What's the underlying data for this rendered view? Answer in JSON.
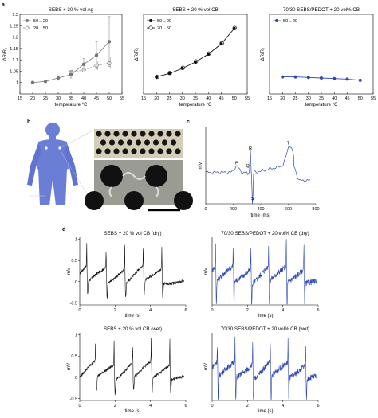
{
  "panels": {
    "a": "a",
    "b": "b",
    "c": "c",
    "d": "d"
  },
  "colors": {
    "silver": "#777777",
    "cb": "#111111",
    "pedot": "#2f47b3",
    "figure_body": "#6a7ed6"
  },
  "chart_data": [
    {
      "id": "a1",
      "type": "line",
      "title": "SEBS + 30 % vol Ag",
      "xlabel": "temperature °C",
      "ylabel": "ΔR/R₀",
      "xlim": [
        15,
        55
      ],
      "ylim": [
        0.95,
        1.3
      ],
      "xticks": [
        15,
        20,
        25,
        30,
        35,
        40,
        45,
        50,
        55
      ],
      "yticks": [
        1,
        1.05,
        1.1,
        1.15,
        1.2,
        1.25,
        1.3
      ],
      "legend_position": "top-left",
      "series": [
        {
          "name": "50→20",
          "x": [
            20,
            25,
            30,
            35,
            40,
            45,
            50
          ],
          "values": [
            1.0,
            1.005,
            1.02,
            1.035,
            1.08,
            1.12,
            1.18
          ],
          "error": [
            0,
            0.004,
            0.01,
            0.015,
            0.025,
            0.06,
            0.11
          ]
        },
        {
          "name": "20→50",
          "x": [
            35,
            40,
            45,
            50
          ],
          "values": [
            1.045,
            1.055,
            1.075,
            1.085
          ],
          "error": [
            0.012,
            0.015,
            0.02,
            0.025
          ]
        }
      ]
    },
    {
      "id": "a2",
      "type": "line",
      "title": "SEBS + 20 % vol CB",
      "xlabel": "temperature °C",
      "ylabel": "ΔR/R₀",
      "xlim": [
        15,
        55
      ],
      "ylim": [
        0.97,
        1.11
      ],
      "xticks": [
        15,
        20,
        25,
        30,
        35,
        40,
        45,
        50,
        55
      ],
      "yticks": [],
      "legend_position": "top-left",
      "series": [
        {
          "name": "50→20",
          "x": [
            20,
            25,
            30,
            35,
            40,
            45,
            50
          ],
          "values": [
            1.0,
            1.006,
            1.015,
            1.026,
            1.04,
            1.058,
            1.085
          ]
        },
        {
          "name": "20→50",
          "x": [
            20,
            25,
            30,
            35,
            40,
            45,
            50
          ],
          "values": [
            1.0,
            1.007,
            1.016,
            1.027,
            1.041,
            1.059,
            1.086
          ]
        }
      ]
    },
    {
      "id": "a3",
      "type": "line",
      "title": "70/30 SEBS/PEDOT + 20 vol% CB",
      "xlabel": "temperature °C",
      "ylabel": "ΔR/R₀",
      "xlim": [
        15,
        55
      ],
      "ylim": [
        0.97,
        1.11
      ],
      "xticks": [
        15,
        20,
        25,
        30,
        35,
        40,
        45,
        50,
        55
      ],
      "yticks": [],
      "legend_position": "top-left",
      "series": [
        {
          "name": "50→20",
          "x": [
            20,
            25,
            30,
            35,
            40,
            45,
            50
          ],
          "values": [
            1.0,
            1.0,
            0.999,
            0.998,
            0.997,
            0.996,
            0.994
          ]
        }
      ]
    },
    {
      "id": "c",
      "type": "line",
      "title": "",
      "xlabel": "time (ms)",
      "ylabel": "mV",
      "xlim": [
        0,
        800
      ],
      "ylim": [
        -0.7,
        1.0
      ],
      "xticks": [
        0,
        200,
        400,
        600,
        800
      ],
      "yticks": [],
      "annotations": [
        {
          "label": "P",
          "x": 225,
          "y": 0.14
        },
        {
          "label": "Q",
          "x": 305,
          "y": 0.08
        },
        {
          "label": "R",
          "x": 325,
          "y": 0.47
        },
        {
          "label": "S",
          "x": 340,
          "y": -0.65
        },
        {
          "label": "T",
          "x": 600,
          "y": 0.58
        }
      ]
    },
    {
      "id": "d1",
      "type": "line",
      "title": "SEBS + 20 % vol CB  (dry)",
      "xlabel": "time (s)",
      "ylabel": "mV",
      "xlim": [
        0,
        6
      ],
      "ylim": [
        -0.55,
        1.05
      ],
      "xticks": [
        0,
        2,
        4,
        6
      ],
      "yticks": [
        -0.5,
        0,
        0.5,
        1
      ],
      "beat_times_s": [
        0.4,
        1.5,
        2.55,
        3.6,
        4.65
      ],
      "color": "#111111"
    },
    {
      "id": "d2",
      "type": "line",
      "title": "70/30 SEBS/PEDOT + 20 vol% CB (dry)",
      "xlabel": "time (s)",
      "ylabel": "mV",
      "xlim": [
        0,
        6
      ],
      "ylim": [
        -0.55,
        1.05
      ],
      "xticks": [
        0,
        2,
        4,
        6
      ],
      "yticks": [],
      "beat_times_s": [
        0.2,
        1.2,
        2.2,
        3.2,
        4.2,
        5.2
      ],
      "color": "#2f47b3"
    },
    {
      "id": "d3",
      "type": "line",
      "title": "SEBS + 20 % vol CB (wet)",
      "xlabel": "time (s)",
      "ylabel": "mV",
      "xlim": [
        0,
        6
      ],
      "ylim": [
        -0.55,
        1.05
      ],
      "xticks": [
        0,
        2,
        4,
        6
      ],
      "yticks": [
        -0.5,
        0,
        0.5,
        1
      ],
      "beat_times_s": [
        0.9,
        1.95,
        3.0,
        4.05,
        5.1
      ],
      "color": "#111111"
    },
    {
      "id": "d4",
      "type": "line",
      "title": "70/30 SEBS/PEDOT + 20 vol% CB (wet)",
      "xlabel": "time (s)",
      "ylabel": "mV",
      "xlim": [
        0,
        6
      ],
      "ylim": [
        -0.55,
        1.05
      ],
      "xticks": [
        0,
        2,
        4,
        6
      ],
      "yticks": [],
      "beat_times_s": [
        0.3,
        1.3,
        2.3,
        3.3,
        4.3,
        5.3
      ],
      "color": "#2f47b3"
    }
  ]
}
